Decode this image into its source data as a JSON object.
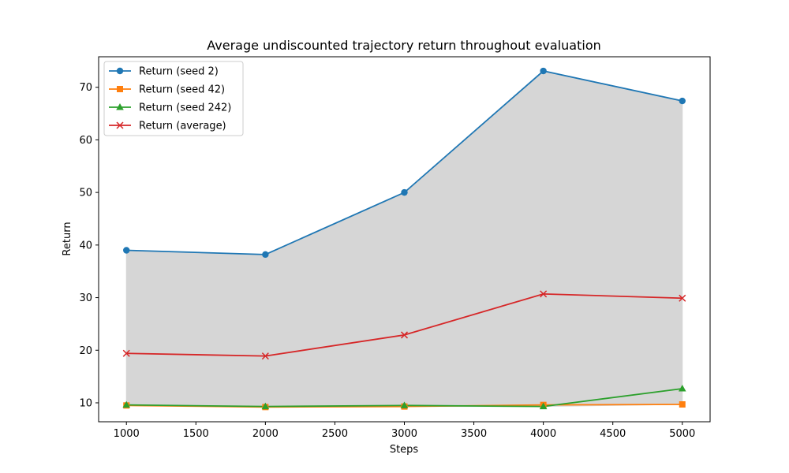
{
  "chart_data": {
    "type": "line",
    "title": "Average undiscounted trajectory return throughout evaluation",
    "xlabel": "Steps",
    "ylabel": "Return",
    "x": [
      1000,
      2000,
      3000,
      4000,
      5000
    ],
    "xlim": [
      800,
      5200
    ],
    "ylim": [
      6.4,
      75.8
    ],
    "xticks": [
      1000,
      1500,
      2000,
      2500,
      3000,
      3500,
      4000,
      4500,
      5000
    ],
    "yticks": [
      10,
      20,
      30,
      40,
      50,
      60,
      70
    ],
    "grid": false,
    "legend_position": "top-left",
    "fill_between": {
      "lower": "min of seeds",
      "upper": "max of seeds",
      "color": "#d6d6d6"
    },
    "series": [
      {
        "name": "Return (seed 2)",
        "values": [
          39.0,
          38.2,
          50.0,
          73.1,
          67.4
        ],
        "color": "#1f77b4",
        "marker": "circle"
      },
      {
        "name": "Return (seed 42)",
        "values": [
          9.5,
          9.2,
          9.3,
          9.6,
          9.7
        ],
        "color": "#ff7f0e",
        "marker": "square"
      },
      {
        "name": "Return (seed 242)",
        "values": [
          9.6,
          9.3,
          9.5,
          9.3,
          12.7
        ],
        "color": "#2ca02c",
        "marker": "triangle"
      },
      {
        "name": "Return (average)",
        "values": [
          19.4,
          18.9,
          22.9,
          30.7,
          29.9
        ],
        "color": "#d62728",
        "marker": "x"
      }
    ]
  }
}
